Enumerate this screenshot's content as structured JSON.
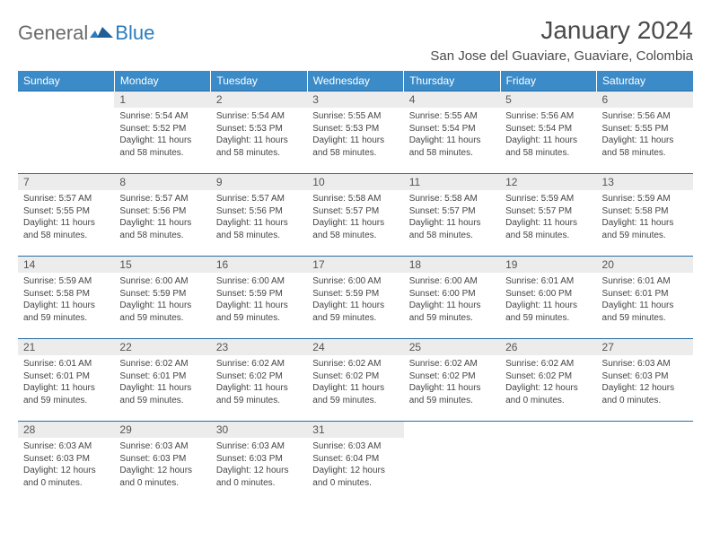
{
  "logo": {
    "text1": "General",
    "text2": "Blue"
  },
  "title": "January 2024",
  "location": "San Jose del Guaviare, Guaviare, Colombia",
  "colors": {
    "header_bg": "#3b8bc8",
    "header_text": "#ffffff",
    "daynum_bg": "#ececec",
    "border": "#2a6ca3",
    "logo_gray": "#6a6a6a",
    "logo_blue": "#2a7bbf"
  },
  "daysOfWeek": [
    "Sunday",
    "Monday",
    "Tuesday",
    "Wednesday",
    "Thursday",
    "Friday",
    "Saturday"
  ],
  "weeks": [
    [
      {
        "n": "",
        "sr": "",
        "ss": "",
        "dl": ""
      },
      {
        "n": "1",
        "sr": "Sunrise: 5:54 AM",
        "ss": "Sunset: 5:52 PM",
        "dl": "Daylight: 11 hours and 58 minutes."
      },
      {
        "n": "2",
        "sr": "Sunrise: 5:54 AM",
        "ss": "Sunset: 5:53 PM",
        "dl": "Daylight: 11 hours and 58 minutes."
      },
      {
        "n": "3",
        "sr": "Sunrise: 5:55 AM",
        "ss": "Sunset: 5:53 PM",
        "dl": "Daylight: 11 hours and 58 minutes."
      },
      {
        "n": "4",
        "sr": "Sunrise: 5:55 AM",
        "ss": "Sunset: 5:54 PM",
        "dl": "Daylight: 11 hours and 58 minutes."
      },
      {
        "n": "5",
        "sr": "Sunrise: 5:56 AM",
        "ss": "Sunset: 5:54 PM",
        "dl": "Daylight: 11 hours and 58 minutes."
      },
      {
        "n": "6",
        "sr": "Sunrise: 5:56 AM",
        "ss": "Sunset: 5:55 PM",
        "dl": "Daylight: 11 hours and 58 minutes."
      }
    ],
    [
      {
        "n": "7",
        "sr": "Sunrise: 5:57 AM",
        "ss": "Sunset: 5:55 PM",
        "dl": "Daylight: 11 hours and 58 minutes."
      },
      {
        "n": "8",
        "sr": "Sunrise: 5:57 AM",
        "ss": "Sunset: 5:56 PM",
        "dl": "Daylight: 11 hours and 58 minutes."
      },
      {
        "n": "9",
        "sr": "Sunrise: 5:57 AM",
        "ss": "Sunset: 5:56 PM",
        "dl": "Daylight: 11 hours and 58 minutes."
      },
      {
        "n": "10",
        "sr": "Sunrise: 5:58 AM",
        "ss": "Sunset: 5:57 PM",
        "dl": "Daylight: 11 hours and 58 minutes."
      },
      {
        "n": "11",
        "sr": "Sunrise: 5:58 AM",
        "ss": "Sunset: 5:57 PM",
        "dl": "Daylight: 11 hours and 58 minutes."
      },
      {
        "n": "12",
        "sr": "Sunrise: 5:59 AM",
        "ss": "Sunset: 5:57 PM",
        "dl": "Daylight: 11 hours and 58 minutes."
      },
      {
        "n": "13",
        "sr": "Sunrise: 5:59 AM",
        "ss": "Sunset: 5:58 PM",
        "dl": "Daylight: 11 hours and 59 minutes."
      }
    ],
    [
      {
        "n": "14",
        "sr": "Sunrise: 5:59 AM",
        "ss": "Sunset: 5:58 PM",
        "dl": "Daylight: 11 hours and 59 minutes."
      },
      {
        "n": "15",
        "sr": "Sunrise: 6:00 AM",
        "ss": "Sunset: 5:59 PM",
        "dl": "Daylight: 11 hours and 59 minutes."
      },
      {
        "n": "16",
        "sr": "Sunrise: 6:00 AM",
        "ss": "Sunset: 5:59 PM",
        "dl": "Daylight: 11 hours and 59 minutes."
      },
      {
        "n": "17",
        "sr": "Sunrise: 6:00 AM",
        "ss": "Sunset: 5:59 PM",
        "dl": "Daylight: 11 hours and 59 minutes."
      },
      {
        "n": "18",
        "sr": "Sunrise: 6:00 AM",
        "ss": "Sunset: 6:00 PM",
        "dl": "Daylight: 11 hours and 59 minutes."
      },
      {
        "n": "19",
        "sr": "Sunrise: 6:01 AM",
        "ss": "Sunset: 6:00 PM",
        "dl": "Daylight: 11 hours and 59 minutes."
      },
      {
        "n": "20",
        "sr": "Sunrise: 6:01 AM",
        "ss": "Sunset: 6:01 PM",
        "dl": "Daylight: 11 hours and 59 minutes."
      }
    ],
    [
      {
        "n": "21",
        "sr": "Sunrise: 6:01 AM",
        "ss": "Sunset: 6:01 PM",
        "dl": "Daylight: 11 hours and 59 minutes."
      },
      {
        "n": "22",
        "sr": "Sunrise: 6:02 AM",
        "ss": "Sunset: 6:01 PM",
        "dl": "Daylight: 11 hours and 59 minutes."
      },
      {
        "n": "23",
        "sr": "Sunrise: 6:02 AM",
        "ss": "Sunset: 6:02 PM",
        "dl": "Daylight: 11 hours and 59 minutes."
      },
      {
        "n": "24",
        "sr": "Sunrise: 6:02 AM",
        "ss": "Sunset: 6:02 PM",
        "dl": "Daylight: 11 hours and 59 minutes."
      },
      {
        "n": "25",
        "sr": "Sunrise: 6:02 AM",
        "ss": "Sunset: 6:02 PM",
        "dl": "Daylight: 11 hours and 59 minutes."
      },
      {
        "n": "26",
        "sr": "Sunrise: 6:02 AM",
        "ss": "Sunset: 6:02 PM",
        "dl": "Daylight: 12 hours and 0 minutes."
      },
      {
        "n": "27",
        "sr": "Sunrise: 6:03 AM",
        "ss": "Sunset: 6:03 PM",
        "dl": "Daylight: 12 hours and 0 minutes."
      }
    ],
    [
      {
        "n": "28",
        "sr": "Sunrise: 6:03 AM",
        "ss": "Sunset: 6:03 PM",
        "dl": "Daylight: 12 hours and 0 minutes."
      },
      {
        "n": "29",
        "sr": "Sunrise: 6:03 AM",
        "ss": "Sunset: 6:03 PM",
        "dl": "Daylight: 12 hours and 0 minutes."
      },
      {
        "n": "30",
        "sr": "Sunrise: 6:03 AM",
        "ss": "Sunset: 6:03 PM",
        "dl": "Daylight: 12 hours and 0 minutes."
      },
      {
        "n": "31",
        "sr": "Sunrise: 6:03 AM",
        "ss": "Sunset: 6:04 PM",
        "dl": "Daylight: 12 hours and 0 minutes."
      },
      {
        "n": "",
        "sr": "",
        "ss": "",
        "dl": ""
      },
      {
        "n": "",
        "sr": "",
        "ss": "",
        "dl": ""
      },
      {
        "n": "",
        "sr": "",
        "ss": "",
        "dl": ""
      }
    ]
  ]
}
